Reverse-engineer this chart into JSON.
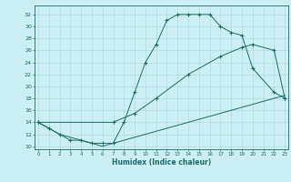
{
  "line1_x": [
    0,
    1,
    2,
    3,
    4,
    5,
    6,
    7,
    8,
    9,
    10,
    11,
    12,
    13,
    14,
    15,
    16,
    17,
    18,
    19,
    20,
    22,
    23
  ],
  "line1_y": [
    14,
    13,
    12,
    11,
    11,
    10.5,
    10.5,
    10.5,
    14,
    19,
    24,
    27,
    31,
    32,
    32,
    32,
    32,
    30,
    29,
    28.5,
    23,
    19,
    18
  ],
  "line2_x": [
    0,
    7,
    9,
    11,
    14,
    17,
    19,
    20,
    22,
    23
  ],
  "line2_y": [
    14,
    14,
    15.5,
    18,
    22,
    25,
    26.5,
    27,
    26,
    18
  ],
  "line3_x": [
    0,
    1,
    2,
    3,
    4,
    5,
    6,
    7,
    8,
    9,
    10,
    11,
    12,
    13,
    14,
    15,
    16,
    17,
    18,
    19,
    20,
    21,
    22,
    23
  ],
  "line3_y": [
    14,
    13,
    12,
    11.5,
    11,
    10.5,
    10,
    10.5,
    11,
    11.5,
    12,
    12.5,
    13,
    13.5,
    14,
    14.5,
    15,
    15.5,
    16,
    16.5,
    17,
    17.5,
    18,
    18.5
  ],
  "line_color": "#1a6b6b",
  "bg_color": "#cceef5",
  "grid_color": "#aad4dc",
  "xlabel": "Humidex (Indice chaleur)",
  "ytick_labels": [
    "10",
    "12",
    "14",
    "16",
    "18",
    "20",
    "22",
    "24",
    "26",
    "28",
    "30",
    "32"
  ],
  "ytick_vals": [
    10,
    12,
    14,
    16,
    18,
    20,
    22,
    24,
    26,
    28,
    30,
    32
  ],
  "xtick_labels": [
    "0",
    "1",
    "2",
    "3",
    "4",
    "5",
    "6",
    "7",
    "8",
    "9",
    "10",
    "11",
    "12",
    "13",
    "14",
    "15",
    "16",
    "17",
    "18",
    "19",
    "20",
    "21",
    "22",
    "23"
  ],
  "xtick_vals": [
    0,
    1,
    2,
    3,
    4,
    5,
    6,
    7,
    8,
    9,
    10,
    11,
    12,
    13,
    14,
    15,
    16,
    17,
    18,
    19,
    20,
    21,
    22,
    23
  ],
  "xlim": [
    -0.3,
    23.3
  ],
  "ylim": [
    9.5,
    33.5
  ]
}
